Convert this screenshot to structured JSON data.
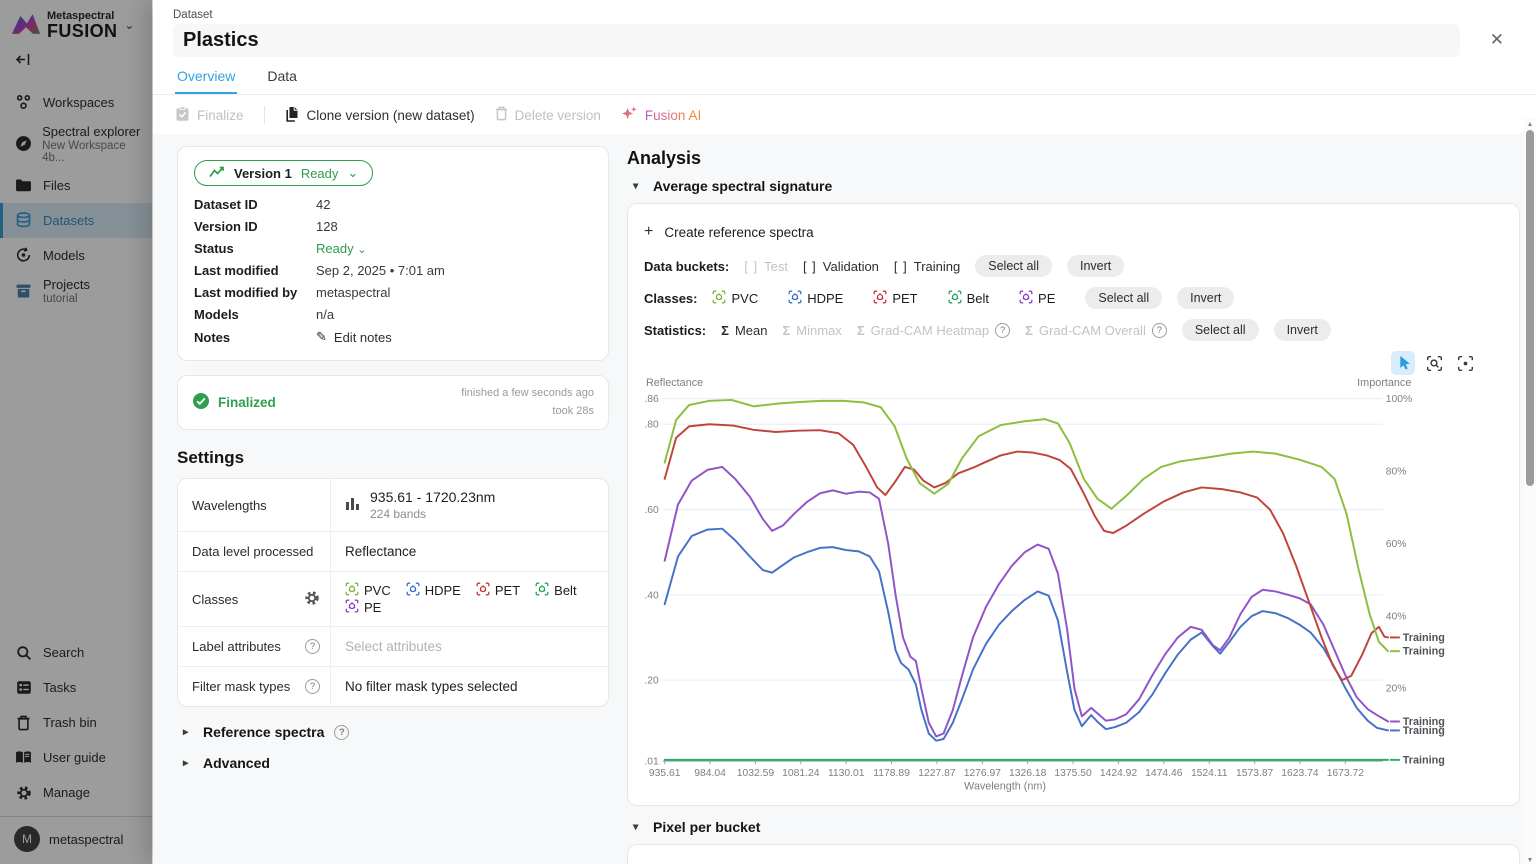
{
  "icons": {
    "close": "✕",
    "chevron_down": "⌄",
    "caret_down": "▾",
    "caret_right": "▸",
    "plus": "+",
    "pencil": "✎",
    "sigma": "Σ",
    "brackets": "[ ]",
    "help": "?",
    "up": "▲",
    "down": "▼"
  },
  "classes": [
    {
      "name": "PVC",
      "color": "#7cb33e"
    },
    {
      "name": "HDPE",
      "color": "#3e6fc4"
    },
    {
      "name": "PET",
      "color": "#c23a34"
    },
    {
      "name": "Belt",
      "color": "#27a25b"
    },
    {
      "name": "PE",
      "color": "#8a3fc6"
    }
  ],
  "sidebar": {
    "brand": {
      "name": "Metaspectral",
      "product": "FUSION"
    },
    "items": [
      {
        "label": "Workspaces"
      },
      {
        "label": "Spectral explorer",
        "sub": "New Workspace 4b..."
      },
      {
        "label": "Files"
      },
      {
        "label": "Datasets"
      },
      {
        "label": "Models"
      },
      {
        "label": "Projects",
        "sub": "tutorial"
      }
    ],
    "footer_items": [
      {
        "label": "Search"
      },
      {
        "label": "Tasks"
      },
      {
        "label": "Trash bin"
      },
      {
        "label": "User guide"
      },
      {
        "label": "Manage"
      }
    ],
    "user": {
      "name": "metaspectral",
      "initial": "M"
    }
  },
  "header": {
    "breadcrumb": "Dataset",
    "title": "Plastics",
    "tabs": [
      {
        "label": "Overview"
      },
      {
        "label": "Data"
      }
    ]
  },
  "toolbar": {
    "finalize": "Finalize",
    "clone": "Clone version (new dataset)",
    "delete_version": "Delete version",
    "fusion_ai": "Fusion AI"
  },
  "version_card": {
    "version_label": "Version 1",
    "version_status": "Ready",
    "rows": [
      {
        "label": "Dataset ID",
        "value": "42"
      },
      {
        "label": "Version ID",
        "value": "128"
      },
      {
        "label": "Status",
        "value": "Ready"
      },
      {
        "label": "Last modified",
        "value": "Sep 2, 2025 • 7:01 am"
      },
      {
        "label": "Last modified by",
        "value": "metaspectral"
      },
      {
        "label": "Models",
        "value": "n/a"
      },
      {
        "label": "Notes",
        "value": "Edit notes"
      }
    ]
  },
  "finalized": {
    "title": "Finalized",
    "meta1": "finished a few seconds ago",
    "meta2": "took 28s"
  },
  "settings": {
    "heading": "Settings",
    "wavelengths": {
      "label": "Wavelengths",
      "value": "935.61 - 1720.23nm",
      "sub": "224 bands"
    },
    "data_level": {
      "label": "Data level processed",
      "value": "Reflectance"
    },
    "classes_label": "Classes",
    "label_attributes": {
      "label": "Label attributes",
      "placeholder": "Select attributes"
    },
    "filter_masks": {
      "label": "Filter mask types",
      "value": "No filter mask types selected"
    }
  },
  "sections": {
    "reference_spectra": "Reference spectra",
    "advanced": "Advanced"
  },
  "analysis": {
    "heading": "Analysis",
    "section_title": "Average spectral signature",
    "create_reference": "Create reference spectra",
    "buckets": {
      "label": "Data buckets:",
      "options": [
        {
          "label": "Test"
        },
        {
          "label": "Validation"
        },
        {
          "label": "Training"
        }
      ],
      "select_all": "Select all",
      "invert": "Invert"
    },
    "classes_label": "Classes:",
    "classes_select_all": "Select all",
    "classes_invert": "Invert",
    "stats": {
      "label": "Statistics:",
      "options": [
        {
          "label": "Mean"
        },
        {
          "label": "Minmax"
        },
        {
          "label": "Grad-CAM Heatmap"
        },
        {
          "label": "Grad-CAM Overall"
        }
      ],
      "select_all": "Select all",
      "invert": "Invert"
    },
    "pixel_per_bucket": "Pixel per bucket"
  },
  "chart_data": {
    "type": "line",
    "title": "Average spectral signature",
    "xlabel": "Wavelength (nm)",
    "ylabel_left": "Reflectance",
    "ylabel_right": "Importance",
    "x_range": [
      935.61,
      1720.23
    ],
    "y_range": [
      0.01,
      0.86
    ],
    "grid": true,
    "legend_position": "right-line-end",
    "line_end_label": "Training",
    "x_ticks": [
      "935.61",
      "984.04",
      "1032.59",
      "1081.24",
      "1130.01",
      "1178.89",
      "1227.87",
      "1276.97",
      "1326.18",
      "1375.50",
      "1424.92",
      "1474.46",
      "1524.11",
      "1573.87",
      "1623.74",
      "1673.72"
    ],
    "y_ticks_left": [
      0.86,
      0.8,
      0.6,
      0.4,
      0.2,
      0.01
    ],
    "y_ticks_right": [
      "100%",
      "80%",
      "60%",
      "40%",
      "20%"
    ],
    "series": [
      {
        "name": "Belt",
        "color": "#2eac66",
        "points": [
          [
            935.6,
            0.013
          ],
          [
            1300,
            0.013
          ],
          [
            1720,
            0.013
          ]
        ]
      },
      {
        "name": "HDPE",
        "color": "#4472c8",
        "points": [
          [
            935.6,
            0.378
          ],
          [
            950,
            0.49
          ],
          [
            965,
            0.538
          ],
          [
            982,
            0.553
          ],
          [
            998,
            0.555
          ],
          [
            1012,
            0.528
          ],
          [
            1028,
            0.49
          ],
          [
            1042,
            0.458
          ],
          [
            1052,
            0.452
          ],
          [
            1064,
            0.47
          ],
          [
            1076,
            0.488
          ],
          [
            1090,
            0.5
          ],
          [
            1104,
            0.51
          ],
          [
            1118,
            0.512
          ],
          [
            1132,
            0.505
          ],
          [
            1146,
            0.502
          ],
          [
            1158,
            0.49
          ],
          [
            1168,
            0.455
          ],
          [
            1178,
            0.36
          ],
          [
            1186,
            0.27
          ],
          [
            1192,
            0.24
          ],
          [
            1200,
            0.225
          ],
          [
            1208,
            0.19
          ],
          [
            1214,
            0.13
          ],
          [
            1222,
            0.075
          ],
          [
            1230,
            0.058
          ],
          [
            1238,
            0.062
          ],
          [
            1248,
            0.1
          ],
          [
            1258,
            0.155
          ],
          [
            1270,
            0.225
          ],
          [
            1284,
            0.285
          ],
          [
            1298,
            0.33
          ],
          [
            1312,
            0.362
          ],
          [
            1326,
            0.388
          ],
          [
            1340,
            0.408
          ],
          [
            1352,
            0.398
          ],
          [
            1362,
            0.34
          ],
          [
            1372,
            0.22
          ],
          [
            1380,
            0.13
          ],
          [
            1388,
            0.092
          ],
          [
            1398,
            0.118
          ],
          [
            1406,
            0.1
          ],
          [
            1414,
            0.085
          ],
          [
            1424,
            0.09
          ],
          [
            1436,
            0.1
          ],
          [
            1450,
            0.125
          ],
          [
            1464,
            0.165
          ],
          [
            1478,
            0.215
          ],
          [
            1492,
            0.26
          ],
          [
            1506,
            0.295
          ],
          [
            1518,
            0.312
          ],
          [
            1530,
            0.28
          ],
          [
            1538,
            0.262
          ],
          [
            1548,
            0.29
          ],
          [
            1560,
            0.325
          ],
          [
            1572,
            0.35
          ],
          [
            1584,
            0.362
          ],
          [
            1598,
            0.357
          ],
          [
            1612,
            0.345
          ],
          [
            1624,
            0.33
          ],
          [
            1636,
            0.312
          ],
          [
            1650,
            0.275
          ],
          [
            1662,
            0.23
          ],
          [
            1674,
            0.18
          ],
          [
            1686,
            0.135
          ],
          [
            1698,
            0.105
          ],
          [
            1708,
            0.088
          ],
          [
            1720,
            0.082
          ]
        ]
      },
      {
        "name": "PE",
        "color": "#9053c8",
        "points": [
          [
            935.6,
            0.48
          ],
          [
            950,
            0.612
          ],
          [
            965,
            0.668
          ],
          [
            982,
            0.693
          ],
          [
            998,
            0.7
          ],
          [
            1012,
            0.672
          ],
          [
            1028,
            0.63
          ],
          [
            1042,
            0.578
          ],
          [
            1052,
            0.55
          ],
          [
            1064,
            0.563
          ],
          [
            1076,
            0.59
          ],
          [
            1090,
            0.618
          ],
          [
            1104,
            0.638
          ],
          [
            1118,
            0.645
          ],
          [
            1132,
            0.637
          ],
          [
            1146,
            0.642
          ],
          [
            1158,
            0.64
          ],
          [
            1168,
            0.625
          ],
          [
            1178,
            0.52
          ],
          [
            1186,
            0.4
          ],
          [
            1194,
            0.3
          ],
          [
            1202,
            0.255
          ],
          [
            1208,
            0.245
          ],
          [
            1214,
            0.18
          ],
          [
            1222,
            0.1
          ],
          [
            1230,
            0.068
          ],
          [
            1238,
            0.075
          ],
          [
            1248,
            0.13
          ],
          [
            1258,
            0.21
          ],
          [
            1270,
            0.3
          ],
          [
            1284,
            0.372
          ],
          [
            1298,
            0.425
          ],
          [
            1312,
            0.468
          ],
          [
            1326,
            0.5
          ],
          [
            1340,
            0.518
          ],
          [
            1352,
            0.508
          ],
          [
            1362,
            0.45
          ],
          [
            1372,
            0.32
          ],
          [
            1380,
            0.18
          ],
          [
            1388,
            0.115
          ],
          [
            1398,
            0.135
          ],
          [
            1406,
            0.12
          ],
          [
            1414,
            0.105
          ],
          [
            1424,
            0.108
          ],
          [
            1436,
            0.12
          ],
          [
            1450,
            0.155
          ],
          [
            1464,
            0.21
          ],
          [
            1478,
            0.26
          ],
          [
            1492,
            0.3
          ],
          [
            1506,
            0.325
          ],
          [
            1518,
            0.318
          ],
          [
            1530,
            0.282
          ],
          [
            1538,
            0.27
          ],
          [
            1548,
            0.3
          ],
          [
            1560,
            0.355
          ],
          [
            1572,
            0.395
          ],
          [
            1584,
            0.412
          ],
          [
            1598,
            0.408
          ],
          [
            1612,
            0.4
          ],
          [
            1624,
            0.392
          ],
          [
            1636,
            0.378
          ],
          [
            1650,
            0.33
          ],
          [
            1662,
            0.27
          ],
          [
            1674,
            0.21
          ],
          [
            1686,
            0.16
          ],
          [
            1698,
            0.132
          ],
          [
            1708,
            0.118
          ],
          [
            1720,
            0.103
          ]
        ]
      },
      {
        "name": "PET",
        "color": "#c0443c",
        "points": [
          [
            935.6,
            0.672
          ],
          [
            948,
            0.768
          ],
          [
            962,
            0.795
          ],
          [
            984,
            0.8
          ],
          [
            1010,
            0.797
          ],
          [
            1032,
            0.787
          ],
          [
            1056,
            0.782
          ],
          [
            1080,
            0.785
          ],
          [
            1104,
            0.786
          ],
          [
            1124,
            0.779
          ],
          [
            1140,
            0.752
          ],
          [
            1154,
            0.7
          ],
          [
            1166,
            0.652
          ],
          [
            1175,
            0.634
          ],
          [
            1186,
            0.667
          ],
          [
            1196,
            0.7
          ],
          [
            1206,
            0.694
          ],
          [
            1216,
            0.668
          ],
          [
            1228,
            0.652
          ],
          [
            1240,
            0.662
          ],
          [
            1254,
            0.685
          ],
          [
            1270,
            0.698
          ],
          [
            1284,
            0.712
          ],
          [
            1300,
            0.727
          ],
          [
            1318,
            0.736
          ],
          [
            1334,
            0.734
          ],
          [
            1350,
            0.727
          ],
          [
            1364,
            0.716
          ],
          [
            1376,
            0.695
          ],
          [
            1390,
            0.638
          ],
          [
            1402,
            0.585
          ],
          [
            1412,
            0.55
          ],
          [
            1422,
            0.545
          ],
          [
            1436,
            0.562
          ],
          [
            1455,
            0.59
          ],
          [
            1476,
            0.618
          ],
          [
            1498,
            0.64
          ],
          [
            1518,
            0.652
          ],
          [
            1540,
            0.648
          ],
          [
            1560,
            0.64
          ],
          [
            1578,
            0.628
          ],
          [
            1592,
            0.6
          ],
          [
            1606,
            0.545
          ],
          [
            1620,
            0.47
          ],
          [
            1634,
            0.385
          ],
          [
            1648,
            0.3
          ],
          [
            1660,
            0.235
          ],
          [
            1670,
            0.2
          ],
          [
            1680,
            0.21
          ],
          [
            1692,
            0.26
          ],
          [
            1702,
            0.31
          ],
          [
            1710,
            0.325
          ],
          [
            1716,
            0.302
          ],
          [
            1720,
            0.3
          ]
        ]
      },
      {
        "name": "PVC",
        "color": "#8cbe3f",
        "points": [
          [
            935.6,
            0.71
          ],
          [
            948,
            0.81
          ],
          [
            962,
            0.845
          ],
          [
            984,
            0.855
          ],
          [
            1008,
            0.857
          ],
          [
            1032,
            0.842
          ],
          [
            1056,
            0.848
          ],
          [
            1080,
            0.852
          ],
          [
            1105,
            0.855
          ],
          [
            1130,
            0.855
          ],
          [
            1152,
            0.851
          ],
          [
            1170,
            0.84
          ],
          [
            1185,
            0.795
          ],
          [
            1198,
            0.72
          ],
          [
            1212,
            0.662
          ],
          [
            1228,
            0.637
          ],
          [
            1243,
            0.66
          ],
          [
            1258,
            0.72
          ],
          [
            1276,
            0.772
          ],
          [
            1300,
            0.798
          ],
          [
            1326,
            0.807
          ],
          [
            1348,
            0.812
          ],
          [
            1362,
            0.802
          ],
          [
            1375,
            0.755
          ],
          [
            1390,
            0.672
          ],
          [
            1405,
            0.625
          ],
          [
            1420,
            0.602
          ],
          [
            1436,
            0.632
          ],
          [
            1455,
            0.672
          ],
          [
            1474,
            0.7
          ],
          [
            1495,
            0.713
          ],
          [
            1524,
            0.722
          ],
          [
            1550,
            0.731
          ],
          [
            1574,
            0.736
          ],
          [
            1598,
            0.731
          ],
          [
            1624,
            0.717
          ],
          [
            1648,
            0.7
          ],
          [
            1662,
            0.672
          ],
          [
            1675,
            0.59
          ],
          [
            1688,
            0.46
          ],
          [
            1700,
            0.355
          ],
          [
            1710,
            0.29
          ],
          [
            1720,
            0.268
          ]
        ]
      }
    ]
  }
}
